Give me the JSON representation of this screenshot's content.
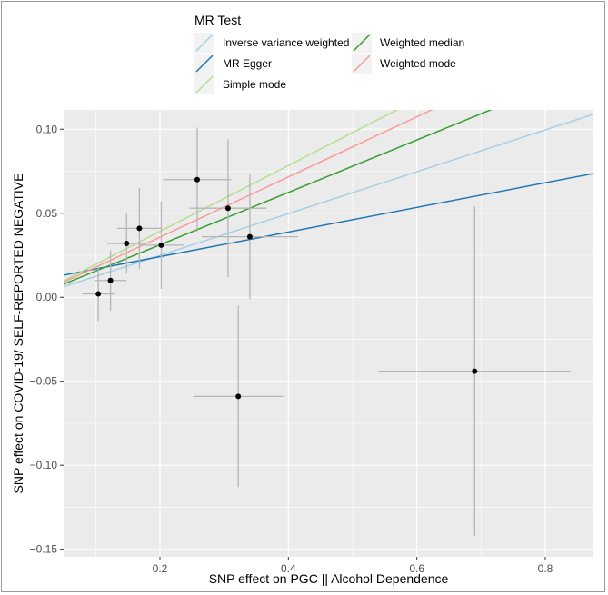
{
  "chart_data": {
    "type": "scatter",
    "xlabel": "SNP effect on PGC || Alcohol Dependence",
    "ylabel": "SNP effect on COVID-19/ SELF-REPORTED NEGATIVE",
    "xlim": [
      0.05,
      0.875
    ],
    "ylim": [
      -0.1545,
      0.1115
    ],
    "x_ticks": [
      0.2,
      0.4,
      0.6,
      0.8
    ],
    "x_tick_labels": [
      "0.2",
      "0.4",
      "0.6",
      "0.8"
    ],
    "y_ticks": [
      -0.15,
      -0.1,
      -0.05,
      0.0,
      0.05,
      0.1
    ],
    "y_tick_labels": [
      "−0.15",
      "−0.10",
      "−0.05",
      "0.00",
      "0.05",
      "0.10"
    ],
    "grid": true,
    "legend": {
      "title": "MR Test",
      "placement": "top",
      "items": [
        {
          "label": "Inverse variance weighted",
          "color": "#A6CEE3"
        },
        {
          "label": "MR Egger",
          "color": "#1F78B4"
        },
        {
          "label": "Simple mode",
          "color": "#B2DF8A"
        },
        {
          "label": "Weighted median",
          "color": "#33A02C"
        },
        {
          "label": "Weighted mode",
          "color": "#FB9A99"
        }
      ]
    },
    "points": [
      {
        "x": 0.104,
        "y": 0.002,
        "x_err": 0.025,
        "y_err": 0.016
      },
      {
        "x": 0.123,
        "y": 0.01,
        "x_err": 0.025,
        "y_err": 0.018
      },
      {
        "x": 0.148,
        "y": 0.032,
        "x_err": 0.03,
        "y_err": 0.018
      },
      {
        "x": 0.168,
        "y": 0.041,
        "x_err": 0.035,
        "y_err": 0.024
      },
      {
        "x": 0.202,
        "y": 0.031,
        "x_err": 0.035,
        "y_err": 0.026
      },
      {
        "x": 0.258,
        "y": 0.07,
        "x_err": 0.053,
        "y_err": 0.031
      },
      {
        "x": 0.306,
        "y": 0.053,
        "x_err": 0.06,
        "y_err": 0.041
      },
      {
        "x": 0.322,
        "y": -0.059,
        "x_err": 0.07,
        "y_err": 0.054
      },
      {
        "x": 0.34,
        "y": 0.036,
        "x_err": 0.075,
        "y_err": 0.037
      },
      {
        "x": 0.69,
        "y": -0.044,
        "x_err": 0.15,
        "y_err": 0.098
      }
    ],
    "lines": [
      {
        "name": "Inverse variance weighted",
        "color": "#A6CEE3",
        "slope": 0.1245,
        "intercept": 0.0
      },
      {
        "name": "MR Egger",
        "color": "#1F78B4",
        "slope": 0.0733,
        "intercept": 0.0095
      },
      {
        "name": "Simple mode",
        "color": "#B2DF8A",
        "slope": 0.196,
        "intercept": 0.0
      },
      {
        "name": "Weighted median",
        "color": "#33A02C",
        "slope": 0.156,
        "intercept": 0.0
      },
      {
        "name": "Weighted mode",
        "color": "#FB9A99",
        "slope": 0.179,
        "intercept": 0.0
      }
    ],
    "colors": {
      "panel_background": "#EBEBEB",
      "grid_major": "#FFFFFF",
      "error_bar": "#B5B5B5",
      "point": "#000000",
      "text": "#000000",
      "tick_label": "#4D4D4D"
    }
  }
}
